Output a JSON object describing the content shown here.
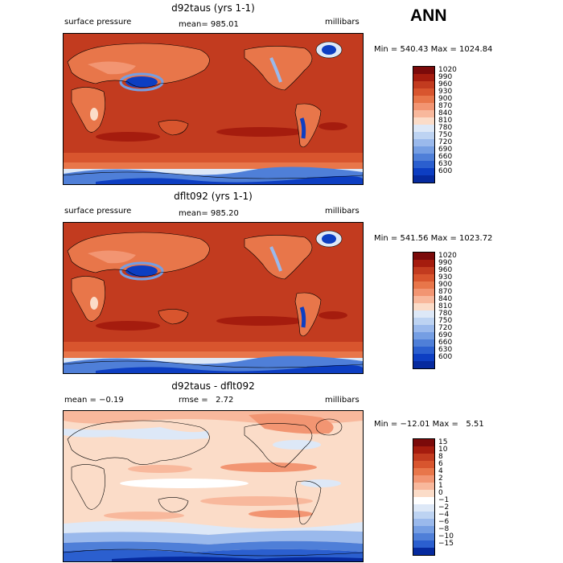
{
  "season": "ANN",
  "panels": [
    {
      "title": "d92taus (yrs 1-1)",
      "left_label": "surface pressure",
      "center_label": "mean= 985.01",
      "units": "millibars",
      "stats": "Min = 540.43 Max = 1024.84",
      "legend": [
        "1020",
        "990",
        "960",
        "930",
        "900",
        "870",
        "840",
        "810",
        "780",
        "750",
        "720",
        "690",
        "660",
        "630",
        "600"
      ]
    },
    {
      "title": "dflt092 (yrs 1-1)",
      "left_label": "surface pressure",
      "center_label": "mean= 985.20",
      "units": "millibars",
      "stats": "Min = 541.56 Max = 1023.72",
      "legend": [
        "1020",
        "990",
        "960",
        "930",
        "900",
        "870",
        "840",
        "810",
        "780",
        "750",
        "720",
        "690",
        "660",
        "630",
        "600"
      ]
    },
    {
      "title": "d92taus - dflt092",
      "left_label": "mean = −0.19",
      "center_label": "rmse =   2.72",
      "units": "millibars",
      "stats": "Min = −12.01 Max =   5.51",
      "legend": [
        "15",
        "10",
        "8",
        "6",
        "4",
        "2",
        "1",
        "0",
        "−1",
        "−2",
        "−4",
        "−6",
        "−8",
        "−10",
        "−15"
      ]
    }
  ],
  "colors": {
    "abs_scale": [
      "#7b0a0a",
      "#a51c0e",
      "#c23b1f",
      "#d8552e",
      "#e8764a",
      "#f29572",
      "#f8b89c",
      "#fbdcc8",
      "#dde8f7",
      "#bdd3f2",
      "#9ab9ec",
      "#759ee3",
      "#4f7fd8",
      "#2b5fcf",
      "#0d3ec2",
      "#062a9e"
    ],
    "diff_scale": [
      "#7b0a0a",
      "#a51c0e",
      "#c23b1f",
      "#d8552e",
      "#e8764a",
      "#f29572",
      "#f8b89c",
      "#fbdcc8",
      "#ffffff",
      "#dde8f7",
      "#bdd3f2",
      "#9ab9ec",
      "#759ee3",
      "#4f7fd8",
      "#2b5fcf",
      "#062a9e"
    ]
  }
}
